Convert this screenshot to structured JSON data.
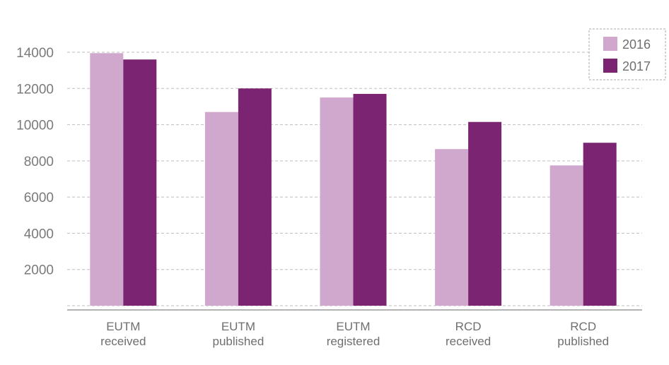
{
  "chart_data": {
    "type": "bar",
    "categories": [
      [
        "EUTM",
        "received"
      ],
      [
        "EUTM",
        "published"
      ],
      [
        "EUTM",
        "registered"
      ],
      [
        "RCD",
        "received"
      ],
      [
        "RCD",
        "published"
      ]
    ],
    "series": [
      {
        "name": "2016",
        "color": "#d0a8ce",
        "values": [
          13950,
          10700,
          11500,
          8650,
          7750
        ]
      },
      {
        "name": "2017",
        "color": "#7b2472",
        "values": [
          13600,
          12000,
          11700,
          10150,
          9000
        ]
      }
    ],
    "yticks": [
      2000,
      4000,
      6000,
      8000,
      10000,
      12000,
      14000
    ],
    "ylim": [
      0,
      14000
    ],
    "grid": true,
    "legend_position": "top-right",
    "title": "",
    "xlabel": "",
    "ylabel": ""
  }
}
